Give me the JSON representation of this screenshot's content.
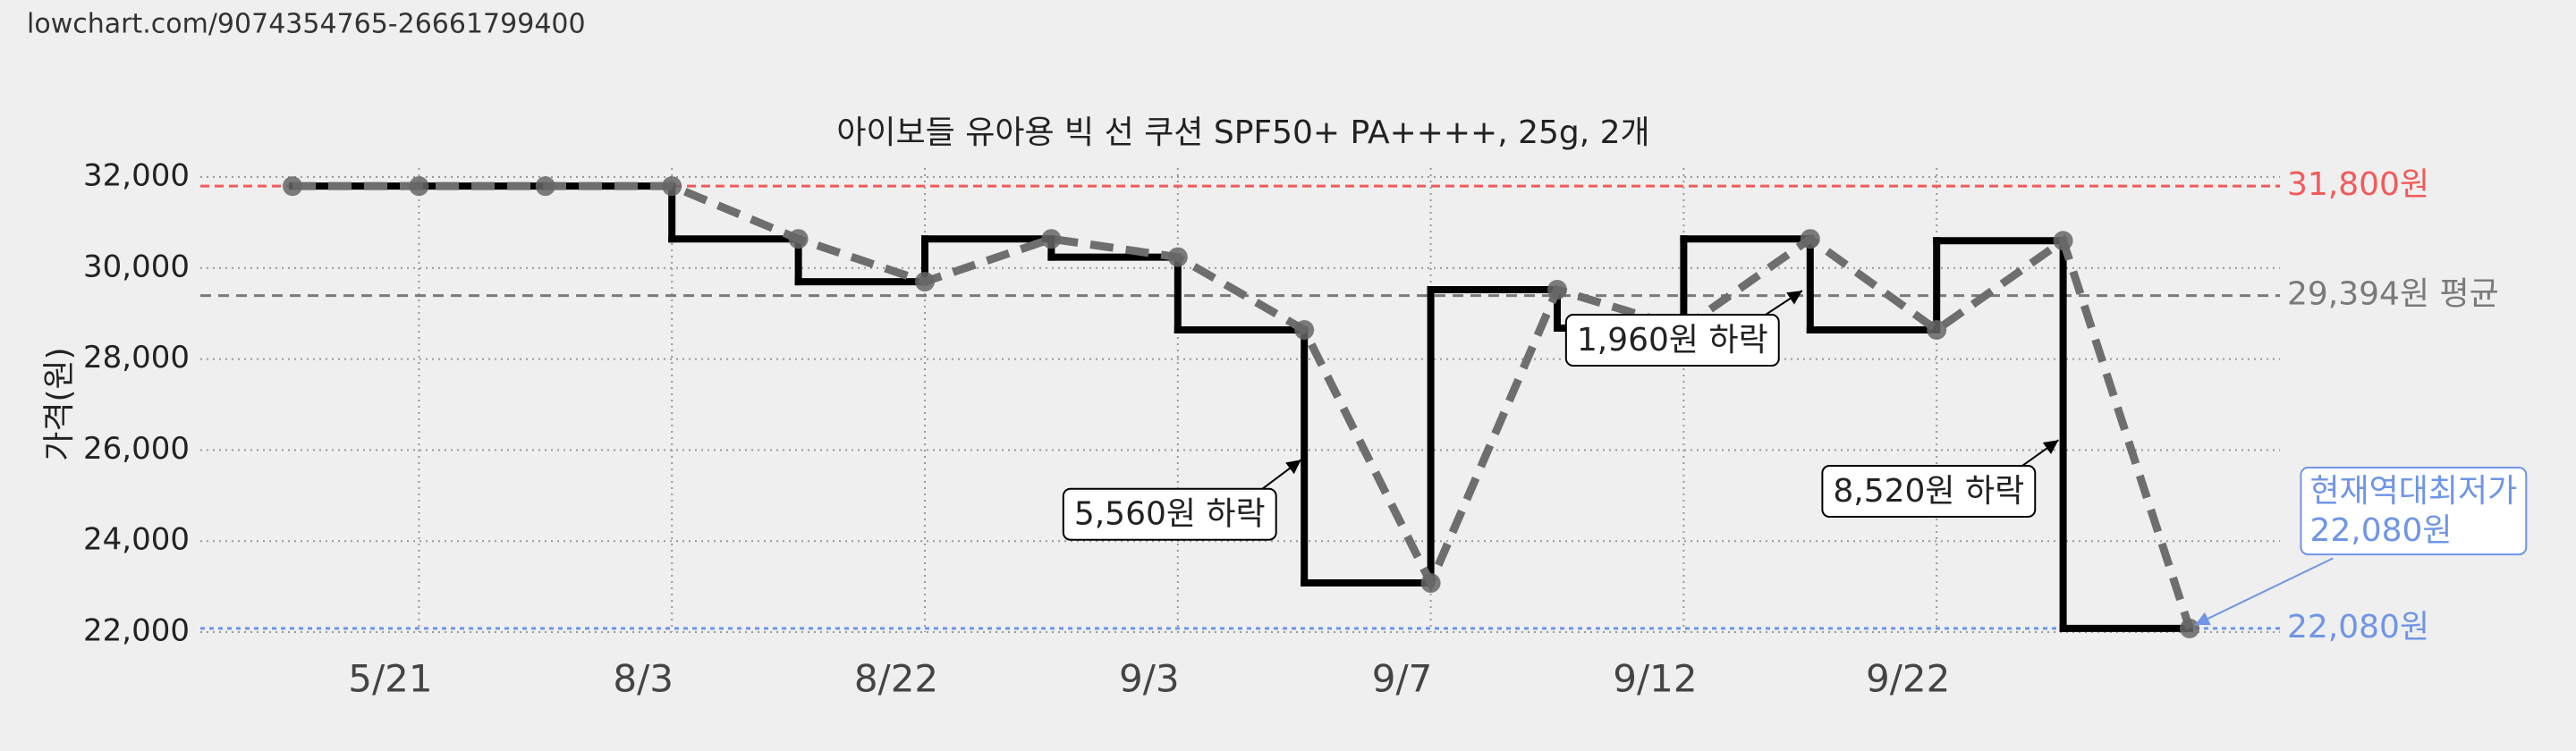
{
  "header": {
    "url": "lowchart.com/9074354765-26661799400"
  },
  "chart_data": {
    "type": "line",
    "title": "아이보들 유아용 빅 선 쿠션 SPF50+ PA++++, 25g, 2개",
    "y_label": "가격(원)",
    "categories": [
      null,
      "5/21",
      null,
      "8/3",
      null,
      "8/22",
      null,
      "9/3",
      null,
      "9/7",
      null,
      "9/12",
      null,
      "9/22",
      null,
      null
    ],
    "series": [
      {
        "color": "#000000",
        "step_color": "#000000",
        "line_color": "#6e6e6e",
        "values": [
          31800,
          31800,
          31800,
          31800,
          30640,
          29700,
          30640,
          30240,
          28640,
          23080,
          29524,
          28680,
          30640,
          28640,
          30600,
          22080
        ]
      }
    ],
    "ylim": [
      22000,
      32000
    ],
    "yticks": [
      {
        "value": 22000,
        "label": "22,000"
      },
      {
        "value": 24000,
        "label": "24,000"
      },
      {
        "value": 26000,
        "label": "26,000"
      },
      {
        "value": 28000,
        "label": "28,000"
      },
      {
        "value": 30000,
        "label": "30,000"
      },
      {
        "value": 32000,
        "label": "32,000"
      }
    ],
    "grid": true,
    "reference_lines": [
      {
        "value": 31800,
        "label": "31,800원",
        "color": "#f25a5a"
      },
      {
        "value": 29394,
        "label": "29,394원 평균",
        "color": "#7a7a7a"
      },
      {
        "value": 22080,
        "label": "22,080원",
        "color": "#6f95e6"
      }
    ],
    "annotations": [
      {
        "text": "5,560원 하락"
      },
      {
        "text": "1,960원 하락"
      },
      {
        "text": "8,520원 하락"
      }
    ],
    "current_low": {
      "title": "현재역대최저가",
      "label": "22,080원",
      "color": "#6f95e6"
    }
  }
}
